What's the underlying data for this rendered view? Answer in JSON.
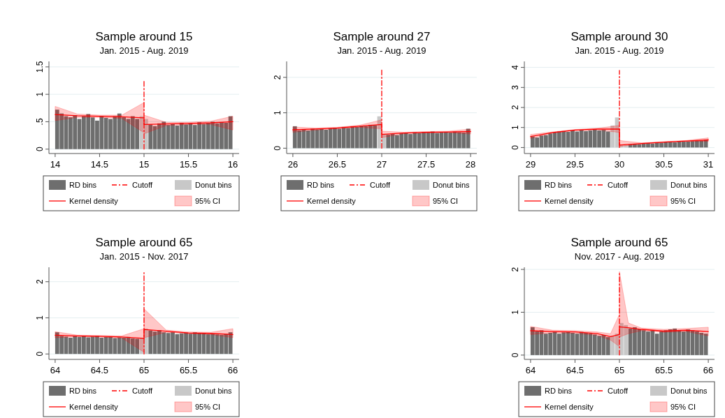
{
  "chart_data": [
    {
      "type": "histogram",
      "title": "Sample around 15",
      "subtitle": "Jan. 2015 - Aug. 2019",
      "xlim": [
        13.93,
        16.07
      ],
      "xticks": [
        14,
        14.5,
        15,
        15.5,
        16
      ],
      "ylim": [
        -0.08,
        1.6
      ],
      "yticks": [
        0,
        {
          "value": 0.5,
          "label": ".5"
        },
        1,
        1.5
      ],
      "grid": "y",
      "legend": "bottom",
      "bins": [
        14,
        14.05,
        14.1,
        14.15,
        14.2,
        14.25,
        14.3,
        14.35,
        14.4,
        14.45,
        14.5,
        14.55,
        14.6,
        14.65,
        14.7,
        14.75,
        14.8,
        14.85,
        14.9,
        14.95,
        15,
        15.05,
        15.1,
        15.15,
        15.2,
        15.25,
        15.3,
        15.35,
        15.4,
        15.45,
        15.5,
        15.55,
        15.6,
        15.65,
        15.7,
        15.75,
        15.8,
        15.85,
        15.9,
        15.95,
        16
      ],
      "series": [
        {
          "name": "RD bins",
          "color": "#6e6e6e",
          "values": [
            0.72,
            0.65,
            0.6,
            0.58,
            0.62,
            0.55,
            0.6,
            0.64,
            0.58,
            0.52,
            0.6,
            0.57,
            0.55,
            0.6,
            0.65,
            0.58,
            0.55,
            0.6,
            0.55,
            null,
            null,
            0.45,
            0.42,
            0.47,
            0.5,
            0.44,
            0.46,
            0.43,
            0.48,
            0.45,
            0.47,
            0.44,
            0.49,
            0.46,
            0.48,
            0.5,
            0.47,
            0.49,
            0.48,
            0.6
          ]
        },
        {
          "name": "Cutoff",
          "type": "line",
          "line_style": "dashed",
          "color": "#ff0000",
          "x": [
            15,
            15
          ],
          "values": [
            0,
            1.25
          ]
        },
        {
          "name": "Donut bins",
          "color": "#c8c8c8",
          "values": [
            null,
            null,
            null,
            null,
            null,
            null,
            null,
            null,
            null,
            null,
            null,
            null,
            null,
            null,
            null,
            null,
            null,
            null,
            null,
            0.6,
            0.55,
            null,
            null,
            null,
            null,
            null,
            null,
            null,
            null,
            null,
            null,
            null,
            null,
            null,
            null,
            null,
            null,
            null,
            null,
            null
          ]
        },
        {
          "name": "Kernel density",
          "type": "line",
          "color": "#ff0000",
          "x": [
            14,
            14.25,
            14.5,
            14.75,
            15,
            15,
            15.25,
            15.5,
            15.75,
            16
          ],
          "values": [
            0.63,
            0.61,
            0.6,
            0.59,
            0.57,
            0.45,
            0.46,
            0.47,
            0.48,
            0.5
          ],
          "upper": [
            0.78,
            0.64,
            0.62,
            0.62,
            0.85,
            0.62,
            0.49,
            0.49,
            0.51,
            0.6
          ],
          "lower": [
            0.52,
            0.58,
            0.58,
            0.56,
            0.3,
            0.28,
            0.43,
            0.45,
            0.45,
            0.35
          ]
        }
      ],
      "annotations": [
        "95% CI"
      ]
    },
    {
      "type": "histogram",
      "title": "Sample around 27",
      "subtitle": "Jan. 2015 - Aug. 2019",
      "xlim": [
        25.93,
        28.07
      ],
      "xticks": [
        26,
        26.5,
        27,
        27.5,
        28
      ],
      "ylim": [
        -0.15,
        2.45
      ],
      "yticks": [
        0,
        1,
        2
      ],
      "grid": "y",
      "legend": "bottom",
      "bins": [
        26,
        26.05,
        26.1,
        26.15,
        26.2,
        26.25,
        26.3,
        26.35,
        26.4,
        26.45,
        26.5,
        26.55,
        26.6,
        26.65,
        26.7,
        26.75,
        26.8,
        26.85,
        26.9,
        26.95,
        27,
        27.05,
        27.1,
        27.15,
        27.2,
        27.25,
        27.3,
        27.35,
        27.4,
        27.45,
        27.5,
        27.55,
        27.6,
        27.65,
        27.7,
        27.75,
        27.8,
        27.85,
        27.9,
        27.95,
        28
      ],
      "series": [
        {
          "name": "RD bins",
          "color": "#6e6e6e",
          "values": [
            0.62,
            0.5,
            0.52,
            0.5,
            0.55,
            0.53,
            0.54,
            0.52,
            0.56,
            0.58,
            0.55,
            0.6,
            0.57,
            0.62,
            0.6,
            0.63,
            0.62,
            0.66,
            0.65,
            null,
            null,
            0.38,
            0.4,
            0.37,
            0.42,
            0.44,
            0.4,
            0.45,
            0.43,
            0.46,
            0.44,
            0.47,
            0.43,
            0.45,
            0.46,
            0.44,
            0.47,
            0.45,
            0.44,
            0.55
          ]
        },
        {
          "name": "Cutoff",
          "type": "line",
          "line_style": "dashed",
          "color": "#ff0000",
          "x": [
            27,
            27
          ],
          "values": [
            0,
            2.25
          ]
        },
        {
          "name": "Donut bins",
          "color": "#c8c8c8",
          "values": [
            null,
            null,
            null,
            null,
            null,
            null,
            null,
            null,
            null,
            null,
            null,
            null,
            null,
            null,
            null,
            null,
            null,
            null,
            null,
            0.9,
            0.4,
            null,
            null,
            null,
            null,
            null,
            null,
            null,
            null,
            null,
            null,
            null,
            null,
            null,
            null,
            null,
            null,
            null,
            null,
            null
          ]
        },
        {
          "name": "Kernel density",
          "type": "line",
          "color": "#ff0000",
          "x": [
            26,
            26.25,
            26.5,
            26.75,
            27,
            27,
            27.25,
            27.5,
            27.75,
            28
          ],
          "values": [
            0.52,
            0.54,
            0.57,
            0.62,
            0.67,
            0.39,
            0.43,
            0.45,
            0.46,
            0.47
          ],
          "upper": [
            0.6,
            0.57,
            0.59,
            0.65,
            0.8,
            0.48,
            0.45,
            0.47,
            0.48,
            0.54
          ],
          "lower": [
            0.45,
            0.51,
            0.55,
            0.59,
            0.55,
            0.3,
            0.41,
            0.43,
            0.44,
            0.4
          ]
        }
      ],
      "annotations": [
        "95% CI"
      ]
    },
    {
      "type": "histogram",
      "title": "Sample around 30",
      "subtitle": "Jan. 2015 - Aug. 2019",
      "xlim": [
        28.93,
        31.07
      ],
      "xticks": [
        29,
        29.5,
        30,
        30.5,
        31
      ],
      "ylim": [
        -0.3,
        4.3
      ],
      "yticks": [
        0,
        1,
        2,
        3,
        4
      ],
      "grid": "y",
      "legend": "bottom",
      "bins": [
        29,
        29.05,
        29.1,
        29.15,
        29.2,
        29.25,
        29.3,
        29.35,
        29.4,
        29.45,
        29.5,
        29.55,
        29.6,
        29.65,
        29.7,
        29.75,
        29.8,
        29.85,
        29.9,
        29.95,
        30,
        30.05,
        30.1,
        30.15,
        30.2,
        30.25,
        30.3,
        30.35,
        30.4,
        30.45,
        30.5,
        30.55,
        30.6,
        30.65,
        30.7,
        30.75,
        30.8,
        30.85,
        30.9,
        30.95,
        31
      ],
      "series": [
        {
          "name": "RD bins",
          "color": "#6e6e6e",
          "values": [
            0.55,
            0.5,
            0.6,
            0.62,
            0.7,
            0.75,
            0.8,
            0.82,
            0.78,
            0.85,
            0.8,
            0.88,
            0.82,
            0.85,
            0.9,
            0.85,
            0.88,
            0.8,
            null,
            null,
            null,
            null,
            0.15,
            0.18,
            0.17,
            0.2,
            0.22,
            0.2,
            0.25,
            0.24,
            0.27,
            0.28,
            0.26,
            0.3,
            0.29,
            0.3,
            0.32,
            0.33,
            0.34,
            0.4
          ]
        },
        {
          "name": "Cutoff",
          "type": "line",
          "line_style": "dashed",
          "color": "#ff0000",
          "x": [
            30,
            30
          ],
          "values": [
            0,
            3.85
          ]
        },
        {
          "name": "Donut bins",
          "color": "#c8c8c8",
          "values": [
            null,
            null,
            null,
            null,
            null,
            null,
            null,
            null,
            null,
            null,
            null,
            null,
            null,
            null,
            null,
            null,
            null,
            null,
            1.1,
            1.5,
            0.15,
            0.12,
            null,
            null,
            null,
            null,
            null,
            null,
            null,
            null,
            null,
            null,
            null,
            null,
            null,
            null,
            null,
            null,
            null,
            null
          ]
        },
        {
          "name": "Kernel density",
          "type": "line",
          "color": "#ff0000",
          "x": [
            29,
            29.25,
            29.5,
            29.75,
            30,
            30,
            30.25,
            30.5,
            30.75,
            31
          ],
          "values": [
            0.55,
            0.75,
            0.87,
            0.92,
            0.92,
            0.12,
            0.2,
            0.27,
            0.32,
            0.38
          ],
          "upper": [
            0.65,
            0.78,
            0.9,
            0.96,
            1.1,
            0.35,
            0.23,
            0.29,
            0.35,
            0.48
          ],
          "lower": [
            0.45,
            0.72,
            0.84,
            0.88,
            0.75,
            0.05,
            0.17,
            0.25,
            0.3,
            0.3
          ]
        }
      ],
      "annotations": [
        "95% CI"
      ]
    },
    {
      "type": "histogram",
      "title": "Sample around 65",
      "subtitle": "Jan. 2015 - Nov. 2017",
      "xlim": [
        63.93,
        66.07
      ],
      "xticks": [
        64,
        64.5,
        65,
        65.5,
        66
      ],
      "ylim": [
        -0.15,
        2.4
      ],
      "yticks": [
        0,
        1,
        2
      ],
      "grid": "y",
      "legend": "bottom",
      "bins": [
        64,
        64.05,
        64.1,
        64.15,
        64.2,
        64.25,
        64.3,
        64.35,
        64.4,
        64.45,
        64.5,
        64.55,
        64.6,
        64.65,
        64.7,
        64.75,
        64.8,
        64.85,
        64.9,
        64.95,
        65,
        65.05,
        65.1,
        65.15,
        65.2,
        65.25,
        65.3,
        65.35,
        65.4,
        65.45,
        65.5,
        65.55,
        65.6,
        65.65,
        65.7,
        65.75,
        65.8,
        65.85,
        65.9,
        65.95,
        66
      ],
      "series": [
        {
          "name": "RD bins",
          "color": "#6e6e6e",
          "values": [
            0.6,
            0.5,
            0.48,
            0.45,
            0.5,
            0.47,
            0.49,
            0.46,
            0.48,
            0.5,
            0.45,
            0.47,
            0.48,
            0.44,
            0.46,
            0.45,
            0.47,
            0.43,
            0.42,
            null,
            null,
            0.65,
            0.62,
            0.66,
            0.6,
            0.58,
            0.6,
            0.55,
            0.57,
            0.59,
            0.56,
            0.6,
            0.58,
            0.57,
            0.55,
            0.56,
            0.54,
            0.53,
            0.55,
            0.6
          ]
        },
        {
          "name": "Cutoff",
          "type": "line",
          "line_style": "dashed",
          "color": "#ff0000",
          "x": [
            65,
            65
          ],
          "values": [
            0,
            2.25
          ]
        },
        {
          "name": "Donut bins",
          "color": "#c8c8c8",
          "values": [
            null,
            null,
            null,
            null,
            null,
            null,
            null,
            null,
            null,
            null,
            null,
            null,
            null,
            null,
            null,
            null,
            null,
            null,
            null,
            0.45,
            0.7,
            null,
            null,
            null,
            null,
            null,
            null,
            null,
            null,
            null,
            null,
            null,
            null,
            null,
            null,
            null,
            null,
            null,
            null,
            null
          ]
        },
        {
          "name": "Kernel density",
          "type": "line",
          "color": "#ff0000",
          "x": [
            64,
            64.25,
            64.5,
            64.75,
            65,
            65,
            65.25,
            65.5,
            65.75,
            66
          ],
          "values": [
            0.52,
            0.5,
            0.49,
            0.47,
            0.43,
            0.68,
            0.63,
            0.58,
            0.57,
            0.54
          ],
          "upper": [
            0.62,
            0.52,
            0.51,
            0.5,
            0.7,
            1.25,
            0.66,
            0.61,
            0.6,
            0.7
          ],
          "lower": [
            0.45,
            0.48,
            0.47,
            0.44,
            0.05,
            0.45,
            0.6,
            0.56,
            0.54,
            0.45
          ]
        }
      ],
      "annotations": [
        "95% CI"
      ]
    },
    {
      "type": "histogram",
      "title": "Sample around 65",
      "subtitle": "Nov. 2017 - Aug. 2019",
      "xlim": [
        63.93,
        66.07
      ],
      "xticks": [
        64,
        64.5,
        65,
        65.5,
        66
      ],
      "ylim": [
        -0.1,
        2.05
      ],
      "yticks": [
        0,
        1,
        2
      ],
      "grid": "y",
      "legend": "bottom",
      "bins": [
        64,
        64.05,
        64.1,
        64.15,
        64.2,
        64.25,
        64.3,
        64.35,
        64.4,
        64.45,
        64.5,
        64.55,
        64.6,
        64.65,
        64.7,
        64.75,
        64.8,
        64.85,
        64.9,
        64.95,
        65,
        65.05,
        65.1,
        65.15,
        65.2,
        65.25,
        65.3,
        65.35,
        65.4,
        65.45,
        65.5,
        65.55,
        65.6,
        65.65,
        65.7,
        65.75,
        65.8,
        65.85,
        65.9,
        65.95,
        66
      ],
      "series": [
        {
          "name": "RD bins",
          "color": "#6e6e6e",
          "values": [
            0.65,
            0.55,
            0.58,
            0.5,
            0.52,
            0.55,
            0.5,
            0.53,
            0.55,
            0.52,
            0.5,
            0.54,
            0.52,
            0.5,
            0.48,
            0.45,
            0.47,
            0.42,
            null,
            null,
            null,
            null,
            0.62,
            0.65,
            0.6,
            0.58,
            0.55,
            0.57,
            0.5,
            0.55,
            0.58,
            0.6,
            0.62,
            0.57,
            0.55,
            0.6,
            0.58,
            0.55,
            0.52,
            0.5
          ]
        },
        {
          "name": "Cutoff",
          "type": "line",
          "line_style": "dashed",
          "color": "#ff0000",
          "x": [
            65,
            65
          ],
          "values": [
            0,
            1.95
          ]
        },
        {
          "name": "Donut bins",
          "color": "#c8c8c8",
          "values": [
            null,
            null,
            null,
            null,
            null,
            null,
            null,
            null,
            null,
            null,
            null,
            null,
            null,
            null,
            null,
            null,
            null,
            null,
            0.45,
            0.5,
            0.75,
            0.7,
            null,
            null,
            null,
            null,
            null,
            null,
            null,
            null,
            null,
            null,
            null,
            null,
            null,
            null,
            null,
            null,
            null,
            null
          ]
        },
        {
          "name": "Kernel density",
          "type": "line",
          "color": "#ff0000",
          "x": [
            64,
            64.25,
            64.5,
            64.75,
            64.9,
            65,
            65,
            65.1,
            65.25,
            65.5,
            65.75,
            66
          ],
          "values": [
            0.57,
            0.55,
            0.54,
            0.5,
            0.43,
            0.48,
            0.66,
            0.64,
            0.6,
            0.56,
            0.58,
            0.55
          ],
          "upper": [
            0.67,
            0.58,
            0.57,
            0.54,
            0.5,
            0.95,
            1.95,
            0.75,
            0.63,
            0.6,
            0.62,
            0.65
          ],
          "lower": [
            0.48,
            0.52,
            0.51,
            0.46,
            0.35,
            0.2,
            0.42,
            0.5,
            0.57,
            0.53,
            0.55,
            0.45
          ]
        }
      ],
      "annotations": [
        "95% CI"
      ]
    }
  ]
}
